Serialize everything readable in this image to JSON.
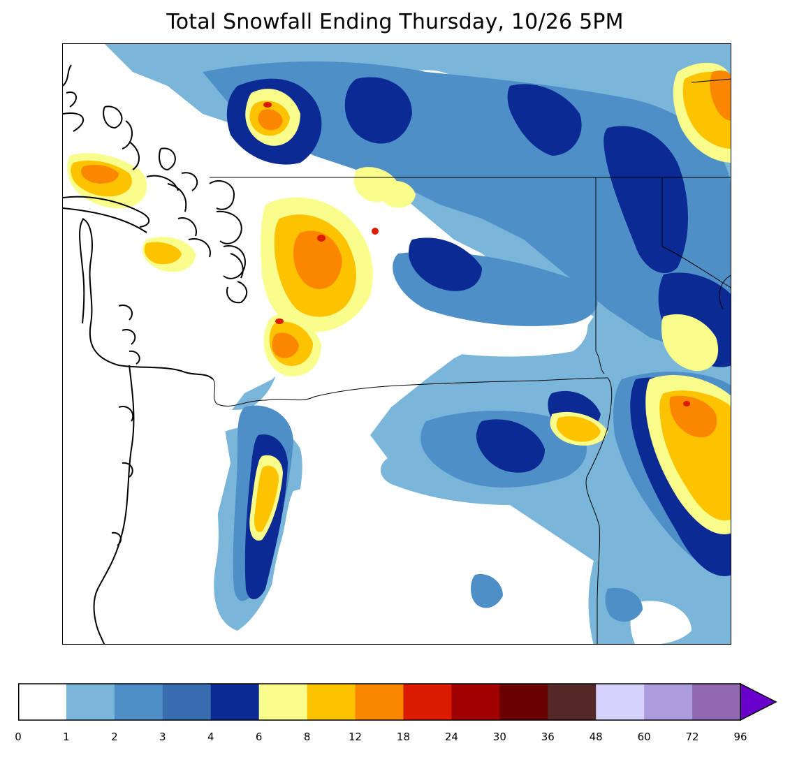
{
  "title": "Total Snowfall Ending Thursday, 10/26 5PM",
  "colorbar": {
    "ticks": [
      "0",
      "1",
      "2",
      "3",
      "4",
      "6",
      "8",
      "12",
      "18",
      "24",
      "30",
      "36",
      "48",
      "60",
      "72",
      "96"
    ],
    "colors": [
      "#ffffff",
      "#7ab6d9",
      "#4f8fc7",
      "#386db0",
      "#0b2a93",
      "#f9fd8b",
      "#fdc300",
      "#fb8700",
      "#db1b00",
      "#a00000",
      "#680000",
      "#552828",
      "#d4d2fd",
      "#ab9ddd",
      "#9268b2"
    ],
    "extend_color": "#6a00cc"
  },
  "legend_units": ""
}
